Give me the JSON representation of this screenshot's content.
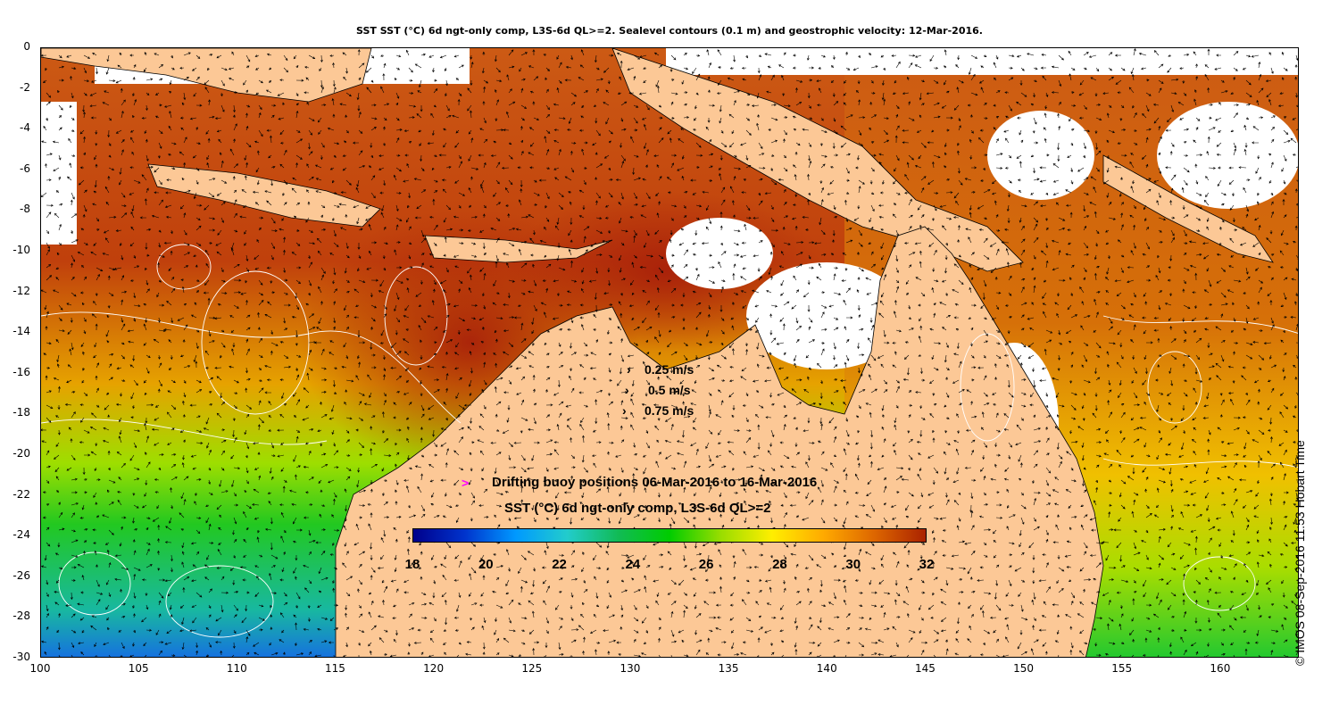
{
  "title": "SST SST (°C) 6d ngt-only comp, L3S-6d QL>=2. Sealevel contours (0.1 m) and geostrophic velocity: 12-Mar-2016.",
  "credit": "© IMOS 08-Sep-2016 11:53 Hobart Time",
  "axes": {
    "lat_ticks": [
      "0",
      "-2",
      "-4",
      "-6",
      "-8",
      "-10",
      "-12",
      "-14",
      "-16",
      "-18",
      "-20",
      "-22",
      "-24",
      "-26",
      "-28",
      "-30"
    ],
    "lon_ticks": [
      "100",
      "105",
      "110",
      "115",
      "120",
      "125",
      "130",
      "135",
      "140",
      "145",
      "150",
      "155",
      "160"
    ],
    "lon_range": [
      100,
      164
    ],
    "lat_range": [
      -30,
      0
    ]
  },
  "velocity_key": [
    {
      "label": "0.25 m/s",
      "speed": 0.25
    },
    {
      "label": "0.5 m/s",
      "speed": 0.5
    },
    {
      "label": "0.75 m/s",
      "speed": 0.75
    }
  ],
  "buoy_legend": {
    "marker": ">",
    "label": "Drifting buoy positions 06-Mar-2016 to 16-Mar-2016",
    "marker_color": "#ff00ff"
  },
  "colorbar": {
    "title": "SST (°C) 6d ngt-only comp, L3S-6d QL>=2",
    "ticks": [
      "18",
      "20",
      "22",
      "24",
      "26",
      "28",
      "30",
      "32"
    ],
    "range": [
      18,
      32
    ],
    "stops": [
      "#00008b",
      "#0033cc",
      "#0099ff",
      "#22cccc",
      "#11bb55",
      "#00cc00",
      "#99dd00",
      "#ffee00",
      "#ffaa00",
      "#dd6600",
      "#aa2200"
    ]
  },
  "colors": {
    "land": "#fcc896",
    "no_data": "#ffffff",
    "contour": "#ffffff",
    "arrow": "#000000"
  }
}
